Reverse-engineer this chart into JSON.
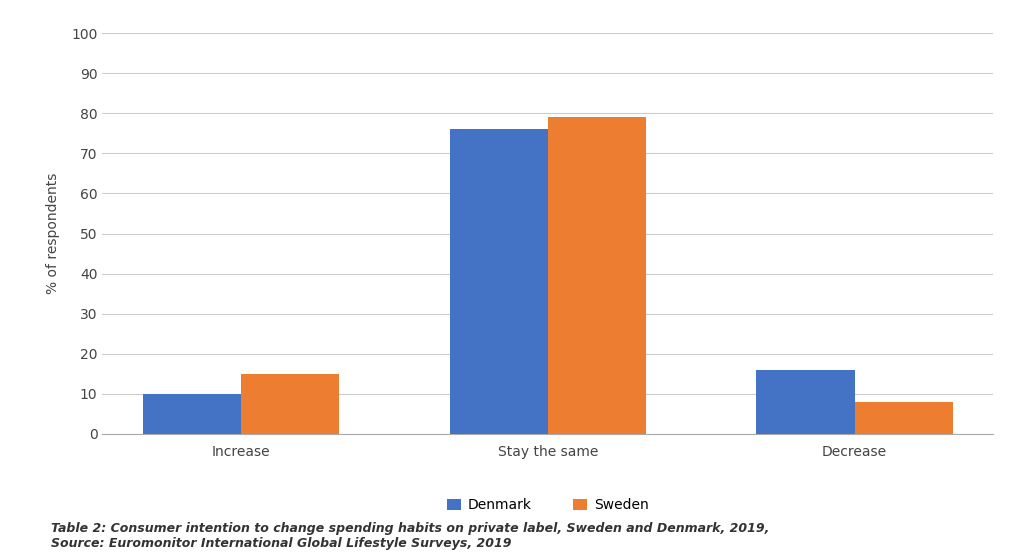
{
  "categories": [
    "Increase",
    "Stay the same",
    "Decrease"
  ],
  "denmark_values": [
    10,
    76,
    16
  ],
  "sweden_values": [
    15,
    79,
    8
  ],
  "denmark_color": "#4472C4",
  "sweden_color": "#ED7D31",
  "denmark_label": "Denmark",
  "sweden_label": "Sweden",
  "ylabel": "% of respondents",
  "ylim": [
    0,
    100
  ],
  "yticks": [
    0,
    10,
    20,
    30,
    40,
    50,
    60,
    70,
    80,
    90,
    100
  ],
  "bar_width": 0.32,
  "background_color": "#FFFFFF",
  "grid_color": "#CCCCCC",
  "caption_line1": "Table 2: Consumer intention to change spending habits on private label, Sweden and Denmark, 2019,",
  "caption_line2": "Source: Euromonitor International Global Lifestyle Surveys, 2019",
  "caption_fontsize": 9
}
